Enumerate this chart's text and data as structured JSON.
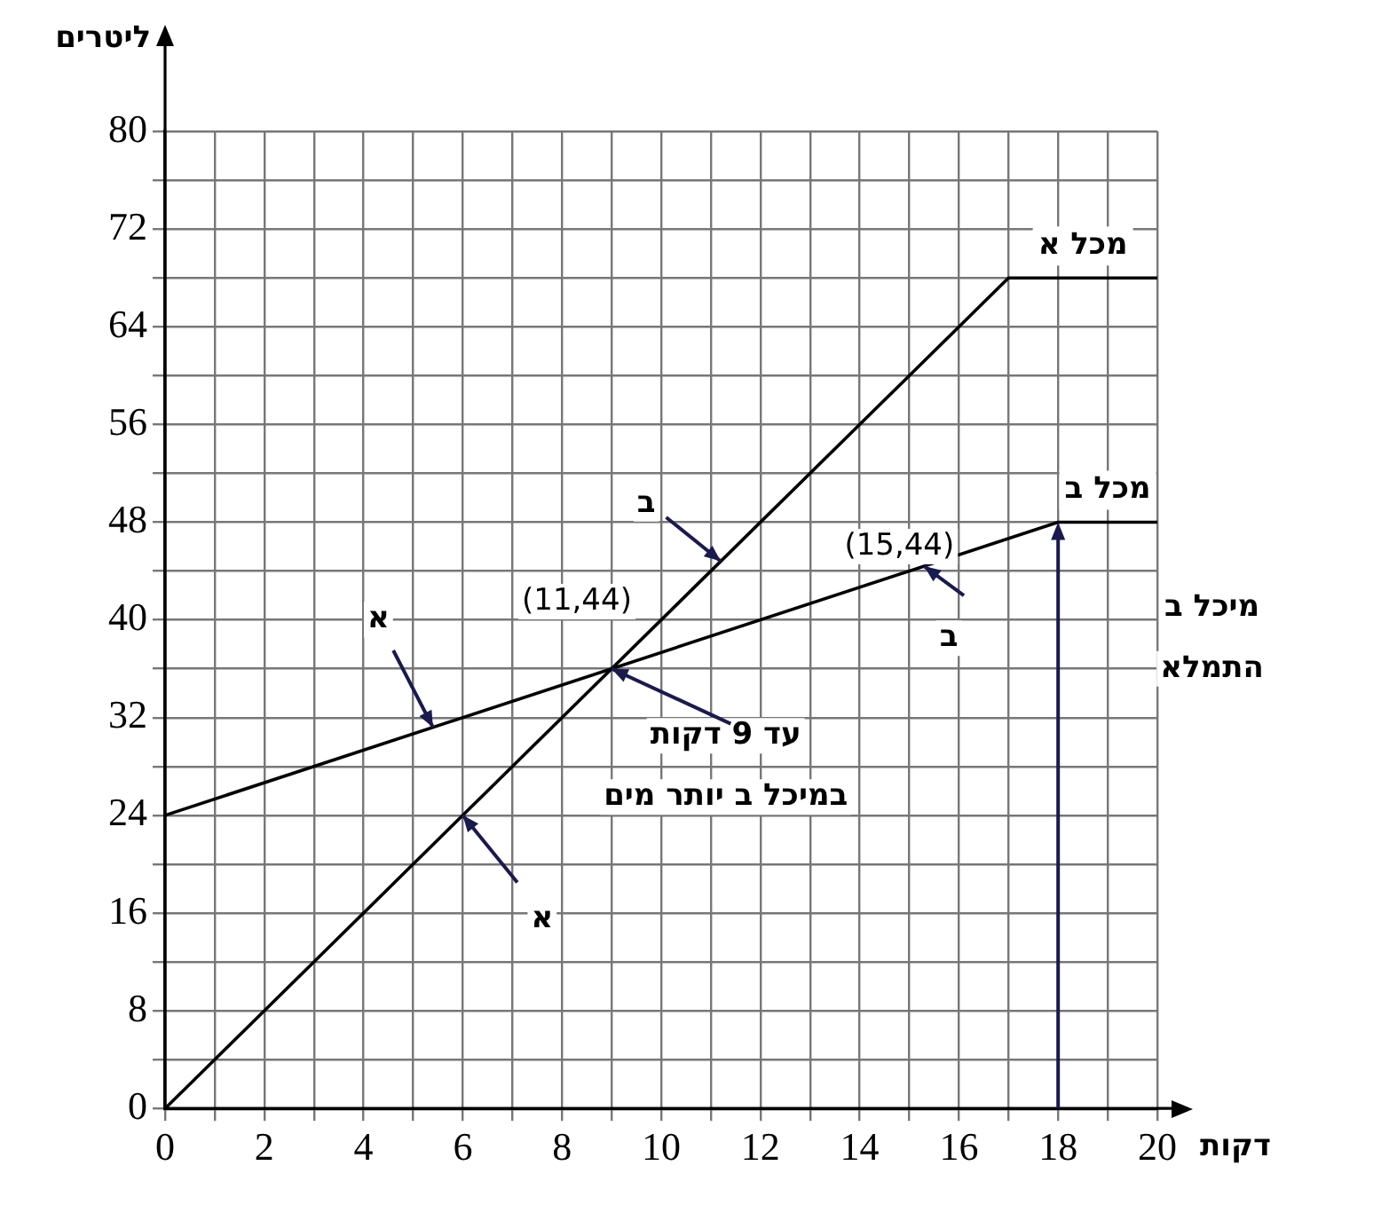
{
  "chart_data": {
    "type": "line",
    "xlabel": "דקות",
    "ylabel": "ליטרים",
    "series": [
      {
        "name": "מכל א",
        "color": "#000000",
        "x": [
          0,
          17,
          20
        ],
        "values": [
          0,
          68,
          68
        ]
      },
      {
        "name": "מכל ב",
        "color": "#000000",
        "x": [
          0,
          18,
          20
        ],
        "values": [
          24,
          48,
          48
        ]
      }
    ],
    "xlim": [
      0,
      20
    ],
    "xticks": [
      0,
      {
        "value": 1,
        "label": null
      },
      2,
      {
        "value": 3,
        "label": null
      },
      4,
      {
        "value": 5,
        "label": null
      },
      6,
      {
        "value": 7,
        "label": null
      },
      8,
      {
        "value": 9,
        "label": null
      },
      10,
      {
        "value": 11,
        "label": null
      },
      12,
      {
        "value": 13,
        "label": null
      },
      14,
      {
        "value": 15,
        "label": null
      },
      16,
      {
        "value": 17,
        "label": null
      },
      18,
      {
        "value": 19,
        "label": null
      },
      20
    ],
    "ylim": [
      0,
      80
    ],
    "yticks": [
      0,
      {
        "value": 4,
        "label": null
      },
      8,
      {
        "value": 12,
        "label": null
      },
      16,
      {
        "value": 20,
        "label": null
      },
      24,
      {
        "value": 28,
        "label": null
      },
      32,
      {
        "value": 36,
        "label": null
      },
      40,
      {
        "value": 44,
        "label": null
      },
      48,
      {
        "value": 52,
        "label": null
      },
      56,
      {
        "value": 60,
        "label": null
      },
      64,
      {
        "value": 68,
        "label": null
      },
      72,
      {
        "value": 76,
        "label": null
      },
      80
    ],
    "grid": true,
    "legend": false,
    "marker": "none",
    "line_style": "solid",
    "annotations": [
      "(15,44)",
      "(11,44)",
      {
        "text": "ב",
        "x": 11.2,
        "y": 44.8
      },
      {
        "text": "א",
        "x": 5.4,
        "y": 31.2
      },
      {
        "text": "ב",
        "x": 15.3,
        "y": 44.4
      },
      {
        "text": "א",
        "x": 6,
        "y": 24
      },
      {
        "text": "עד 9 דקות",
        "x": 9,
        "y": 36
      },
      "במיכל ב יותר מים",
      "מיכל ב",
      "התמלא"
    ]
  }
}
